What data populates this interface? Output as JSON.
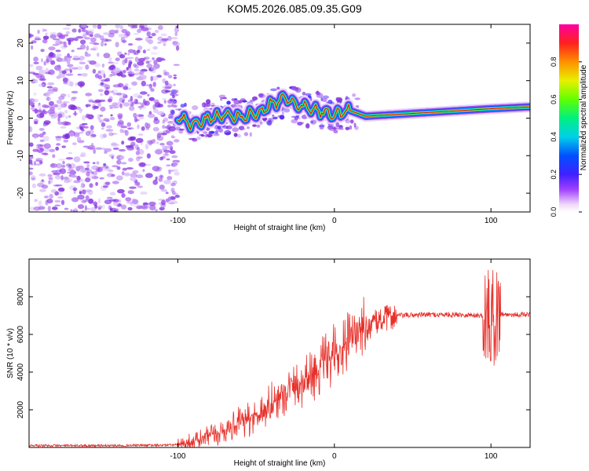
{
  "title": "KOM5.2026.085.09.35.G09",
  "colors": {
    "snr_line": "#e8302a",
    "ridge_hi": "#d8141e"
  },
  "chart_data": [
    {
      "type": "heatmap",
      "xlabel": "Height of straight line (km)",
      "ylabel": "Frequency (Hz)",
      "xlim": [
        -195,
        125
      ],
      "ylim": [
        -25,
        25
      ],
      "xticks": [
        -100,
        0,
        100
      ],
      "xtick_labels": [
        "-100",
        "0",
        "100"
      ],
      "yticks": [
        -20,
        -10,
        0,
        10,
        20
      ],
      "ytick_labels": [
        "-20",
        "-10",
        "0",
        "10",
        "20"
      ],
      "noise_region_x": [
        -195,
        -100
      ],
      "ridge": {
        "x": [
          -100,
          -90,
          -80,
          -70,
          -60,
          -50,
          -40,
          -30,
          -20,
          -10,
          0,
          10,
          20,
          40,
          60,
          80,
          100,
          125
        ],
        "y": [
          0,
          -2,
          0,
          1,
          0,
          1,
          4,
          5,
          3,
          2,
          1,
          2,
          0.5,
          1,
          1.5,
          2,
          2.5,
          3
        ]
      },
      "colorbar": {
        "label": "Normalized spectral amplitude",
        "range": [
          0.0,
          1.0
        ],
        "ticks": [
          0.0,
          0.2,
          0.4,
          0.6,
          0.8
        ],
        "tick_labels": [
          "0.0",
          "0.2",
          "0.4",
          "0.6",
          "0.8"
        ]
      }
    },
    {
      "type": "line",
      "xlabel": "Height of straight line (km)",
      "ylabel": "SNR (10 * v/v)",
      "xlim": [
        -195,
        125
      ],
      "ylim": [
        0,
        10000
      ],
      "xticks": [
        -100,
        0,
        100
      ],
      "xtick_labels": [
        "-100",
        "0",
        "100"
      ],
      "yticks": [
        2000,
        4000,
        6000,
        8000
      ],
      "ytick_labels": [
        "2000",
        "4000",
        "6000",
        "8000"
      ],
      "series": [
        {
          "name": "SNR",
          "x": [
            -195,
            -150,
            -110,
            -100,
            -90,
            -80,
            -70,
            -60,
            -50,
            -40,
            -30,
            -20,
            -10,
            0,
            10,
            20,
            30,
            40,
            60,
            80,
            95,
            100,
            103,
            106,
            110,
            125
          ],
          "y": [
            100,
            100,
            120,
            150,
            300,
            600,
            900,
            1300,
            1700,
            2300,
            3000,
            3600,
            4200,
            4800,
            5500,
            6300,
            6800,
            7000,
            7050,
            7050,
            7000,
            6800,
            7000,
            7100,
            7050,
            7050
          ]
        }
      ]
    }
  ]
}
